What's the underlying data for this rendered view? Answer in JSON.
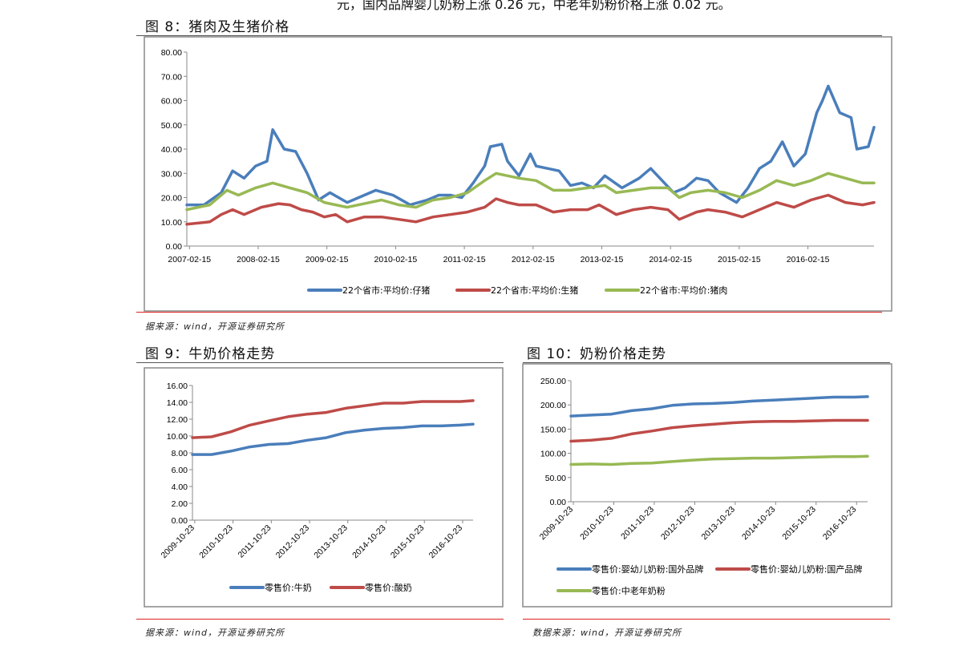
{
  "page": {
    "top_text": "元，国内品牌婴儿奶粉上涨 0.26 元，中老年奶粉价格上涨 0.02 元。"
  },
  "figures": [
    {
      "title": "图 8：猪肉及生猪价格",
      "source": "据来源：wind，开源证券研究所"
    },
    {
      "title": "图 9：牛奶价格走势",
      "source": "据来源：wind，开源证券研究所"
    },
    {
      "title": "图 10：奶粉价格走势",
      "source": "数据来源：wind，开源证券研究所"
    }
  ],
  "chart_data": [
    {
      "type": "line",
      "title": "",
      "ylim": [
        0,
        80
      ],
      "yticks": [
        "0.00",
        "10.00",
        "20.00",
        "30.00",
        "40.00",
        "50.00",
        "60.00",
        "70.00",
        "80.00"
      ],
      "xticks": [
        "2007-02-15",
        "2008-02-15",
        "2009-02-15",
        "2010-02-15",
        "2011-02-15",
        "2012-02-15",
        "2013-02-15",
        "2014-02-15",
        "2015-02-15",
        "2016-02-15"
      ],
      "xrange": [
        "2007-02",
        "2017-02"
      ],
      "legend": "bottom",
      "grid": false,
      "series": [
        {
          "name": "22个省市:平均价:仔猪",
          "color": "#4a7ebb",
          "x": [
            "2007-02",
            "2007-05",
            "2007-08",
            "2007-10",
            "2007-12",
            "2008-02",
            "2008-04",
            "2008-05",
            "2008-07",
            "2008-09",
            "2008-11",
            "2009-01",
            "2009-03",
            "2009-06",
            "2009-09",
            "2009-11",
            "2010-02",
            "2010-05",
            "2010-08",
            "2010-10",
            "2010-12",
            "2011-02",
            "2011-04",
            "2011-06",
            "2011-07",
            "2011-09",
            "2011-10",
            "2011-12",
            "2012-02",
            "2012-03",
            "2012-05",
            "2012-07",
            "2012-09",
            "2012-11",
            "2013-01",
            "2013-03",
            "2013-06",
            "2013-09",
            "2013-11",
            "2014-01",
            "2014-03",
            "2014-05",
            "2014-07",
            "2014-09",
            "2014-11",
            "2015-02",
            "2015-04",
            "2015-06",
            "2015-08",
            "2015-10",
            "2015-12",
            "2016-02",
            "2016-04",
            "2016-05",
            "2016-06",
            "2016-08",
            "2016-10",
            "2016-11",
            "2017-01",
            "2017-02"
          ],
          "values": [
            17,
            17,
            22,
            31,
            28,
            33,
            35,
            48,
            40,
            39,
            30,
            19,
            22,
            18,
            21,
            23,
            21,
            17,
            19,
            21,
            21,
            20,
            26,
            33,
            41,
            42,
            35,
            29,
            38,
            33,
            32,
            31,
            25,
            26,
            24,
            29,
            24,
            28,
            32,
            27,
            22,
            24,
            28,
            27,
            22,
            18,
            24,
            32,
            35,
            43,
            33,
            38,
            55,
            60,
            66,
            55,
            53,
            40,
            41,
            49
          ]
        },
        {
          "name": "22个省市:平均价:生猪",
          "color": "#be4b48",
          "x": [
            "2007-02",
            "2007-06",
            "2007-08",
            "2007-10",
            "2007-12",
            "2008-03",
            "2008-06",
            "2008-08",
            "2008-10",
            "2008-12",
            "2009-02",
            "2009-04",
            "2009-06",
            "2009-09",
            "2009-12",
            "2010-03",
            "2010-06",
            "2010-09",
            "2010-12",
            "2011-03",
            "2011-06",
            "2011-08",
            "2011-10",
            "2011-12",
            "2012-03",
            "2012-06",
            "2012-09",
            "2012-12",
            "2013-02",
            "2013-05",
            "2013-08",
            "2013-11",
            "2014-02",
            "2014-04",
            "2014-07",
            "2014-09",
            "2014-12",
            "2015-03",
            "2015-06",
            "2015-09",
            "2015-12",
            "2016-03",
            "2016-06",
            "2016-09",
            "2016-12",
            "2017-02"
          ],
          "values": [
            9,
            10,
            13,
            15,
            13,
            16,
            17.5,
            17,
            15,
            14,
            12,
            13,
            10,
            12,
            12,
            11,
            10,
            12,
            13,
            14,
            16,
            19.5,
            18,
            17,
            17,
            14,
            15,
            15,
            17,
            13,
            15,
            16,
            15,
            11,
            14,
            15,
            14,
            12,
            15,
            18,
            16,
            19,
            21,
            18,
            17,
            18
          ]
        },
        {
          "name": "22个省市:平均价:猪肉",
          "color": "#98b954",
          "x": [
            "2007-02",
            "2007-06",
            "2007-09",
            "2007-11",
            "2008-02",
            "2008-05",
            "2008-08",
            "2008-11",
            "2009-02",
            "2009-06",
            "2009-10",
            "2009-12",
            "2010-03",
            "2010-06",
            "2010-09",
            "2010-12",
            "2011-03",
            "2011-06",
            "2011-08",
            "2011-10",
            "2011-12",
            "2012-03",
            "2012-06",
            "2012-09",
            "2012-12",
            "2013-03",
            "2013-05",
            "2013-08",
            "2013-11",
            "2014-02",
            "2014-04",
            "2014-06",
            "2014-09",
            "2014-12",
            "2015-03",
            "2015-06",
            "2015-09",
            "2015-12",
            "2016-03",
            "2016-06",
            "2016-09",
            "2016-12",
            "2017-02"
          ],
          "values": [
            15,
            17,
            23,
            21,
            24,
            26,
            24,
            22,
            18,
            16,
            18,
            19,
            17,
            16,
            19,
            20,
            22,
            27,
            30,
            29,
            28,
            27,
            23,
            23,
            24,
            25,
            22,
            23,
            24,
            24,
            20,
            22,
            23,
            22,
            20,
            23,
            27,
            25,
            27,
            30,
            28,
            26,
            26
          ]
        }
      ]
    },
    {
      "type": "line",
      "title": "",
      "ylim": [
        0,
        16
      ],
      "yticks": [
        "0.00",
        "2.00",
        "4.00",
        "6.00",
        "8.00",
        "10.00",
        "12.00",
        "14.00",
        "16.00"
      ],
      "xticks": [
        "2009-10-23",
        "2010-10-23",
        "2011-10-23",
        "2012-10-23",
        "2013-10-23",
        "2014-10-23",
        "2015-10-23",
        "2016-10-23"
      ],
      "xrange": [
        "2009-10",
        "2017-02"
      ],
      "legend": "bottom",
      "grid": false,
      "series": [
        {
          "name": "零售价:牛奶",
          "color": "#4a7ebb",
          "x": [
            "2009-10",
            "2010-04",
            "2010-10",
            "2011-04",
            "2011-10",
            "2012-04",
            "2012-10",
            "2013-04",
            "2013-10",
            "2014-04",
            "2014-10",
            "2015-04",
            "2015-10",
            "2016-04",
            "2016-10",
            "2017-02"
          ],
          "values": [
            7.8,
            7.8,
            8.2,
            8.7,
            9.0,
            9.1,
            9.5,
            9.8,
            10.4,
            10.7,
            10.9,
            11.0,
            11.2,
            11.2,
            11.3,
            11.4
          ]
        },
        {
          "name": "零售价:酸奶",
          "color": "#be4b48",
          "x": [
            "2009-10",
            "2010-04",
            "2010-10",
            "2011-04",
            "2011-10",
            "2012-04",
            "2012-10",
            "2013-04",
            "2013-10",
            "2014-04",
            "2014-10",
            "2015-04",
            "2015-10",
            "2016-04",
            "2016-10",
            "2017-02"
          ],
          "values": [
            9.8,
            9.9,
            10.5,
            11.3,
            11.8,
            12.3,
            12.6,
            12.8,
            13.3,
            13.6,
            13.9,
            13.9,
            14.1,
            14.1,
            14.1,
            14.2
          ]
        }
      ]
    },
    {
      "type": "line",
      "title": "",
      "ylim": [
        0,
        250
      ],
      "yticks": [
        "0.00",
        "50.00",
        "100.00",
        "150.00",
        "200.00",
        "250.00"
      ],
      "xticks": [
        "2009-10-23",
        "2010-10-23",
        "2011-10-23",
        "2012-10-23",
        "2013-10-23",
        "2014-10-23",
        "2015-10-23",
        "2016-10-23"
      ],
      "xrange": [
        "2009-10",
        "2017-02"
      ],
      "legend": "bottom",
      "grid": false,
      "series": [
        {
          "name": "零售价:婴幼儿奶粉:国外品牌",
          "color": "#4a7ebb",
          "x": [
            "2009-10",
            "2010-04",
            "2010-10",
            "2011-04",
            "2011-10",
            "2012-04",
            "2012-10",
            "2013-04",
            "2013-10",
            "2014-04",
            "2014-10",
            "2015-04",
            "2015-10",
            "2016-04",
            "2016-10",
            "2017-02"
          ],
          "values": [
            177,
            179,
            181,
            188,
            192,
            199,
            202,
            203,
            205,
            208,
            210,
            212,
            214,
            216,
            216,
            217
          ]
        },
        {
          "name": "零售价:婴幼儿奶粉:国产品牌",
          "color": "#be4b48",
          "x": [
            "2009-10",
            "2010-04",
            "2010-10",
            "2011-04",
            "2011-10",
            "2012-04",
            "2012-10",
            "2013-04",
            "2013-10",
            "2014-04",
            "2014-10",
            "2015-04",
            "2015-10",
            "2016-04",
            "2016-10",
            "2017-02"
          ],
          "values": [
            125,
            127,
            131,
            140,
            146,
            153,
            157,
            160,
            163,
            165,
            166,
            166,
            167,
            168,
            168,
            168
          ]
        },
        {
          "name": "零售价:中老年奶粉",
          "color": "#98b954",
          "x": [
            "2009-10",
            "2010-04",
            "2010-10",
            "2011-04",
            "2011-10",
            "2012-04",
            "2012-10",
            "2013-04",
            "2013-10",
            "2014-04",
            "2014-10",
            "2015-04",
            "2015-10",
            "2016-04",
            "2016-10",
            "2017-02"
          ],
          "values": [
            77,
            78,
            77,
            79,
            80,
            83,
            86,
            88,
            89,
            90,
            90,
            91,
            92,
            93,
            93,
            94
          ]
        }
      ]
    }
  ]
}
